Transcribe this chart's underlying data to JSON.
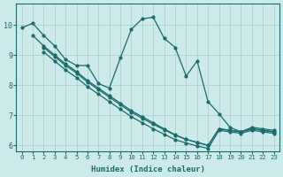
{
  "xlabel": "Humidex (Indice chaleur)",
  "xlim": [
    -0.5,
    23.5
  ],
  "ylim": [
    5.8,
    10.7
  ],
  "bg_color": "#cceaea",
  "line_color": "#1a6b6b",
  "grid_color": "#aacccc",
  "spike_line": {
    "x": [
      0,
      1,
      2,
      3,
      4,
      5,
      6,
      7,
      8,
      9,
      10,
      11,
      12,
      13,
      14,
      15,
      16,
      17,
      18,
      19,
      20,
      21,
      22,
      23
    ],
    "y": [
      9.9,
      10.05,
      9.65,
      9.3,
      8.85,
      8.65,
      8.65,
      8.05,
      7.9,
      8.9,
      9.85,
      10.2,
      10.25,
      9.55,
      9.25,
      8.3,
      8.8,
      7.45,
      7.05,
      6.6,
      6.45,
      6.6,
      6.55,
      6.5
    ]
  },
  "straight_lines": [
    {
      "x": [
        1,
        2,
        3,
        4,
        5,
        6,
        7,
        8,
        9,
        10,
        11,
        12,
        13,
        14,
        15,
        16,
        17,
        18,
        19,
        20,
        21,
        22,
        23
      ],
      "y": [
        9.65,
        9.3,
        9.0,
        8.7,
        8.45,
        8.15,
        7.9,
        7.65,
        7.4,
        7.15,
        6.95,
        6.75,
        6.55,
        6.35,
        6.2,
        6.1,
        6.0,
        6.55,
        6.5,
        6.45,
        6.55,
        6.5,
        6.45
      ]
    },
    {
      "x": [
        2,
        3,
        4,
        5,
        6,
        7,
        8,
        9,
        10,
        11,
        12,
        13,
        14,
        15,
        16,
        17,
        18,
        19,
        20,
        21,
        22,
        23
      ],
      "y": [
        9.25,
        8.95,
        8.65,
        8.4,
        8.1,
        7.85,
        7.6,
        7.35,
        7.1,
        6.9,
        6.7,
        6.52,
        6.34,
        6.2,
        6.1,
        6.0,
        6.55,
        6.5,
        6.45,
        6.55,
        6.5,
        6.45
      ]
    },
    {
      "x": [
        2,
        3,
        4,
        5,
        6,
        7,
        8,
        9,
        10,
        11,
        12,
        13,
        14,
        15,
        16,
        17,
        18,
        19,
        20,
        21,
        22,
        23
      ],
      "y": [
        9.1,
        8.8,
        8.5,
        8.25,
        7.95,
        7.7,
        7.45,
        7.2,
        6.95,
        6.75,
        6.55,
        6.37,
        6.19,
        6.08,
        5.98,
        5.9,
        6.5,
        6.45,
        6.4,
        6.5,
        6.45,
        6.4
      ]
    }
  ],
  "yticks": [
    6,
    7,
    8,
    9,
    10
  ],
  "xticks": [
    0,
    1,
    2,
    3,
    4,
    5,
    6,
    7,
    8,
    9,
    10,
    11,
    12,
    13,
    14,
    15,
    16,
    17,
    18,
    19,
    20,
    21,
    22,
    23
  ]
}
